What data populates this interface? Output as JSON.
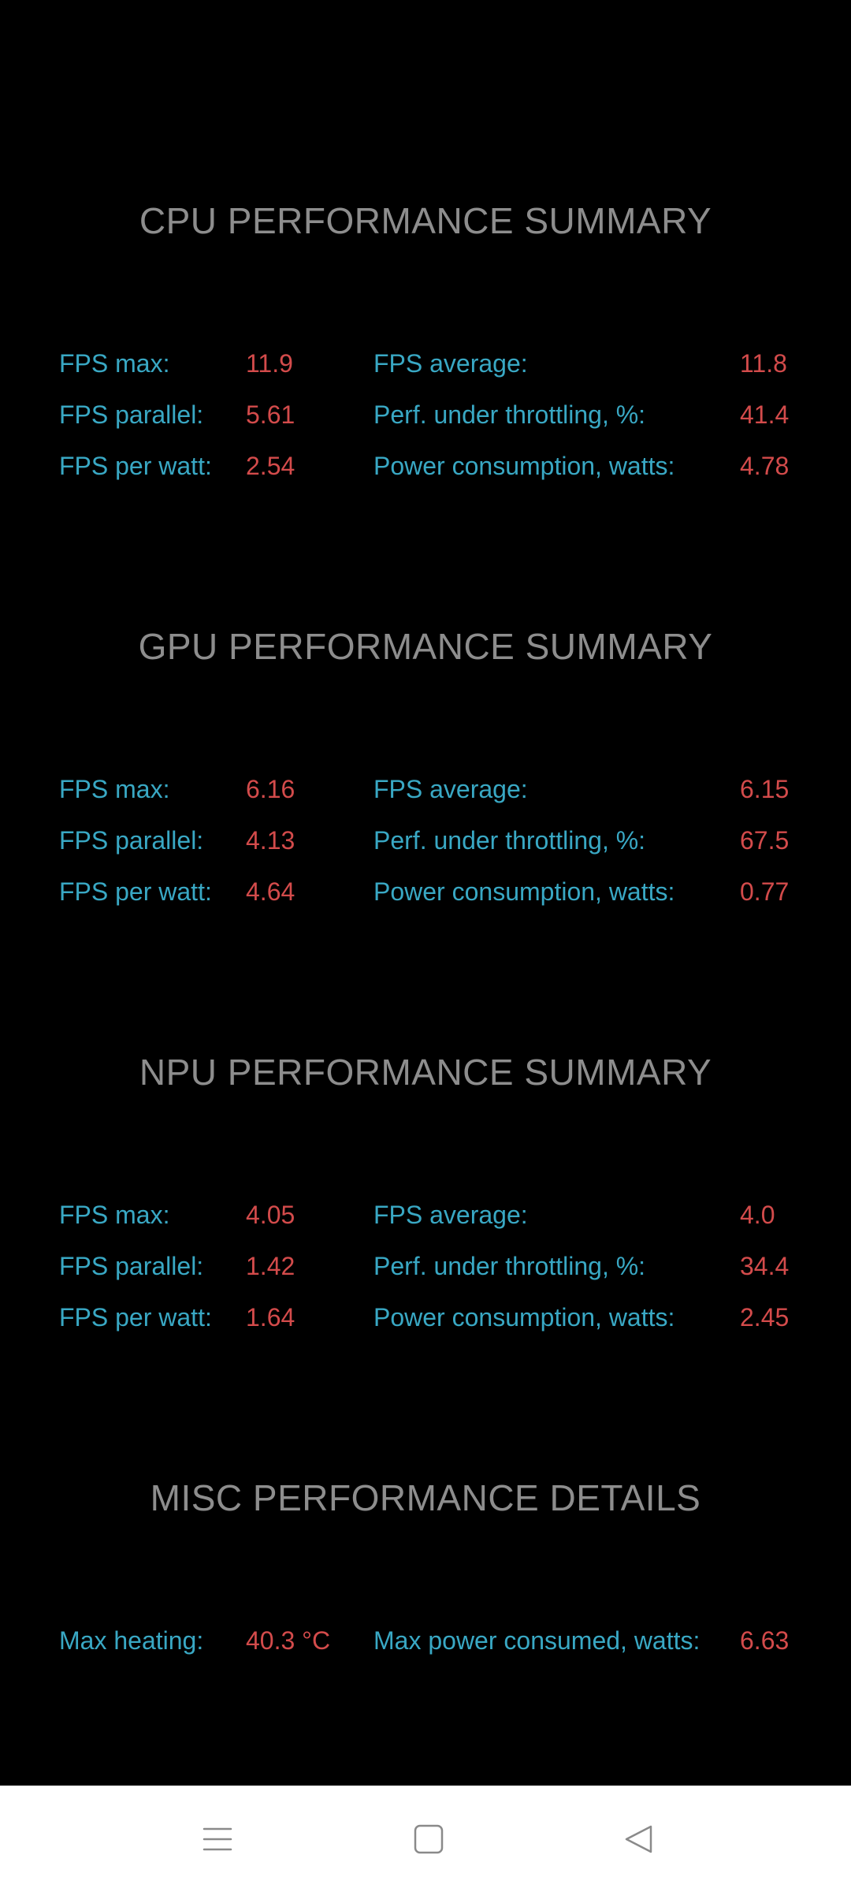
{
  "sections": [
    {
      "title": "CPU PERFORMANCE SUMMARY",
      "rows": [
        {
          "left_label": "FPS max:",
          "left_value": "11.9",
          "right_label": "FPS average:",
          "right_value": "11.8"
        },
        {
          "left_label": "FPS parallel:",
          "left_value": "5.61",
          "right_label": "Perf. under throttling, %:",
          "right_value": "41.4"
        },
        {
          "left_label": "FPS per watt:",
          "left_value": "2.54",
          "right_label": "Power consumption, watts:",
          "right_value": "4.78"
        }
      ]
    },
    {
      "title": "GPU PERFORMANCE SUMMARY",
      "rows": [
        {
          "left_label": "FPS max:",
          "left_value": "6.16",
          "right_label": "FPS average:",
          "right_value": "6.15"
        },
        {
          "left_label": "FPS parallel:",
          "left_value": "4.13",
          "right_label": "Perf. under throttling, %:",
          "right_value": "67.5"
        },
        {
          "left_label": "FPS per watt:",
          "left_value": "4.64",
          "right_label": "Power consumption, watts:",
          "right_value": "0.77"
        }
      ]
    },
    {
      "title": "NPU PERFORMANCE SUMMARY",
      "rows": [
        {
          "left_label": "FPS max:",
          "left_value": "4.05",
          "right_label": "FPS average:",
          "right_value": "4.0"
        },
        {
          "left_label": "FPS parallel:",
          "left_value": "1.42",
          "right_label": "Perf. under throttling, %:",
          "right_value": "34.4"
        },
        {
          "left_label": "FPS per watt:",
          "left_value": "1.64",
          "right_label": "Power consumption, watts:",
          "right_value": "2.45"
        }
      ]
    },
    {
      "title": "MISC PERFORMANCE DETAILS",
      "rows": [
        {
          "left_label": "Max heating:",
          "left_value": "40.3 °C",
          "right_label": "Max power consumed, watts:",
          "right_value": "6.63"
        }
      ]
    }
  ],
  "navbar": {
    "icons": [
      "menu-icon",
      "home-square-icon",
      "back-triangle-icon"
    ]
  },
  "colors": {
    "background": "#000000",
    "title": "#8d8d8d",
    "label": "#39a8c4",
    "value": "#d34b4b",
    "navbar": "#ffffff"
  }
}
